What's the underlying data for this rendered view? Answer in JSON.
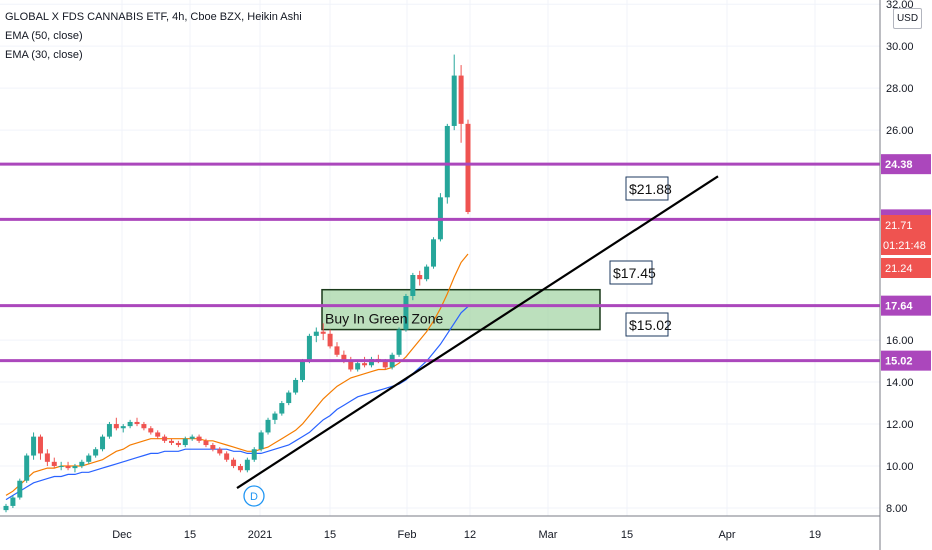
{
  "legend": {
    "title": "GLOBAL X FDS CANNABIS ETF, 4h, Cboe BZX, Heikin Ashi",
    "ema50": "EMA (50, close)",
    "ema30": "EMA (30, close)"
  },
  "currency": "USD",
  "colors": {
    "up": "#26a69a",
    "down": "#ef5350",
    "ema50": "#2962ff",
    "ema30": "#f57c00",
    "level": "#ab47bc",
    "zone_fill": "#a5d6a7",
    "trendline": "#000000",
    "grid": "#f0f3fa"
  },
  "chart_data": {
    "type": "candlestick",
    "x_ticks": [
      "Dec",
      "15",
      "2021",
      "15",
      "Feb",
      "12",
      "Mar",
      "15",
      "Apr",
      "19"
    ],
    "y_ticks": [
      "8.00",
      "10.00",
      "12.00",
      "14.00",
      "16.00",
      "26.00",
      "28.00",
      "30.00",
      "32.00"
    ],
    "ylim": [
      6,
      32.2
    ],
    "grid": true,
    "horizontal_levels": [
      {
        "value": 24.38,
        "label": "24.38"
      },
      {
        "value": 21.75,
        "label": "21.75"
      },
      {
        "value": 17.64,
        "label": "17.64"
      },
      {
        "value": 15.02,
        "label": "15.02"
      }
    ],
    "price_tags": [
      {
        "value": 21.71,
        "label": "21.71"
      },
      {
        "value": 21.24,
        "label": "21.24"
      }
    ],
    "countdown": "01:21:48",
    "annotations": [
      {
        "text": "$21.88"
      },
      {
        "text": "$17.45"
      },
      {
        "text": "$15.02"
      },
      {
        "text": "Buy In Green Zone"
      }
    ],
    "zone": {
      "y_top": 18.4,
      "y_bottom": 16.5
    },
    "trendline": {
      "start": {
        "date": "2020-12-18",
        "price": 8.95
      },
      "end": {
        "date": "2021-03-30",
        "price": 23.8
      }
    },
    "event_marker": "D",
    "candles": [
      [
        7.9,
        8.2,
        7.8,
        8.1
      ],
      [
        8.1,
        8.6,
        8.0,
        8.5
      ],
      [
        8.5,
        9.4,
        8.4,
        9.3
      ],
      [
        9.3,
        10.6,
        9.2,
        10.5
      ],
      [
        10.5,
        11.6,
        10.3,
        11.4
      ],
      [
        11.4,
        11.5,
        10.3,
        10.6
      ],
      [
        10.6,
        10.8,
        10.0,
        10.2
      ],
      [
        10.2,
        10.4,
        9.9,
        10.0
      ],
      [
        10.0,
        10.2,
        9.8,
        10.0
      ],
      [
        10.0,
        10.2,
        9.8,
        9.9
      ],
      [
        9.9,
        10.1,
        9.7,
        10.0
      ],
      [
        10.0,
        10.3,
        9.9,
        10.2
      ],
      [
        10.2,
        10.6,
        10.1,
        10.5
      ],
      [
        10.5,
        10.9,
        10.4,
        10.8
      ],
      [
        10.8,
        11.5,
        10.7,
        11.4
      ],
      [
        11.4,
        12.1,
        11.3,
        12.0
      ],
      [
        12.0,
        12.3,
        11.7,
        11.8
      ],
      [
        11.8,
        12.0,
        11.6,
        11.9
      ],
      [
        11.9,
        12.2,
        11.8,
        12.1
      ],
      [
        12.1,
        12.3,
        11.9,
        12.0
      ],
      [
        12.0,
        12.1,
        11.7,
        11.8
      ],
      [
        11.8,
        11.9,
        11.5,
        11.6
      ],
      [
        11.6,
        11.7,
        11.3,
        11.4
      ],
      [
        11.4,
        11.5,
        11.1,
        11.2
      ],
      [
        11.2,
        11.3,
        11.0,
        11.1
      ],
      [
        11.1,
        11.2,
        10.9,
        11.0
      ],
      [
        11.0,
        11.4,
        10.9,
        11.3
      ],
      [
        11.3,
        11.5,
        11.2,
        11.4
      ],
      [
        11.4,
        11.5,
        11.1,
        11.2
      ],
      [
        11.2,
        11.3,
        10.9,
        11.0
      ],
      [
        11.0,
        11.1,
        10.7,
        10.8
      ],
      [
        10.8,
        10.9,
        10.5,
        10.6
      ],
      [
        10.6,
        10.7,
        10.2,
        10.3
      ],
      [
        10.3,
        10.4,
        9.9,
        10.0
      ],
      [
        10.0,
        10.1,
        9.7,
        9.8
      ],
      [
        9.8,
        10.4,
        9.7,
        10.3
      ],
      [
        10.3,
        10.9,
        10.2,
        10.8
      ],
      [
        10.8,
        11.7,
        10.7,
        11.6
      ],
      [
        11.6,
        12.3,
        11.5,
        12.2
      ],
      [
        12.2,
        12.6,
        12.0,
        12.5
      ],
      [
        12.5,
        13.1,
        12.4,
        13.0
      ],
      [
        13.0,
        13.6,
        12.9,
        13.5
      ],
      [
        13.5,
        14.2,
        13.4,
        14.1
      ],
      [
        14.1,
        15.1,
        14.0,
        15.0
      ],
      [
        15.0,
        16.3,
        14.9,
        16.2
      ],
      [
        16.2,
        16.6,
        15.9,
        16.4
      ],
      [
        16.4,
        16.8,
        16.0,
        16.3
      ],
      [
        16.3,
        16.5,
        15.6,
        15.7
      ],
      [
        15.7,
        15.9,
        15.2,
        15.3
      ],
      [
        15.3,
        15.5,
        14.9,
        15.0
      ],
      [
        15.0,
        15.2,
        14.5,
        14.6
      ],
      [
        14.6,
        15.0,
        14.5,
        14.9
      ],
      [
        14.9,
        15.2,
        14.7,
        14.8
      ],
      [
        14.8,
        15.2,
        14.7,
        15.1
      ],
      [
        15.1,
        15.3,
        14.9,
        15.0
      ],
      [
        15.0,
        15.1,
        14.6,
        14.7
      ],
      [
        14.7,
        15.4,
        14.6,
        15.3
      ],
      [
        15.3,
        16.6,
        15.2,
        16.5
      ],
      [
        16.5,
        18.2,
        16.4,
        18.1
      ],
      [
        18.1,
        19.2,
        17.9,
        19.1
      ],
      [
        19.1,
        19.3,
        18.6,
        18.9
      ],
      [
        18.9,
        19.6,
        18.8,
        19.5
      ],
      [
        19.5,
        20.9,
        19.4,
        20.8
      ],
      [
        20.8,
        23.0,
        20.7,
        22.8
      ],
      [
        22.8,
        26.3,
        22.5,
        26.2
      ],
      [
        26.2,
        29.6,
        26.0,
        28.6
      ],
      [
        28.6,
        29.1,
        25.4,
        26.3
      ],
      [
        26.3,
        26.5,
        22.0,
        22.1
      ]
    ],
    "ema30": [
      8.6,
      8.8,
      9.1,
      9.4,
      9.7,
      9.8,
      9.9,
      9.9,
      10.0,
      10.0,
      10.0,
      10.0,
      10.1,
      10.2,
      10.3,
      10.5,
      10.7,
      10.8,
      11.0,
      11.1,
      11.2,
      11.3,
      11.3,
      11.3,
      11.3,
      11.3,
      11.3,
      11.3,
      11.3,
      11.2,
      11.2,
      11.1,
      11.0,
      10.9,
      10.8,
      10.7,
      10.7,
      10.8,
      10.9,
      11.1,
      11.3,
      11.5,
      11.7,
      12.0,
      12.4,
      12.8,
      13.2,
      13.5,
      13.8,
      14.0,
      14.2,
      14.3,
      14.4,
      14.5,
      14.6,
      14.6,
      14.7,
      14.9,
      15.2,
      15.6,
      16.0,
      16.4,
      16.9,
      17.5,
      18.2,
      19.0,
      19.7,
      20.1
    ],
    "ema50": [
      8.4,
      8.6,
      8.8,
      9.0,
      9.2,
      9.3,
      9.4,
      9.5,
      9.5,
      9.6,
      9.6,
      9.7,
      9.7,
      9.8,
      9.9,
      10.0,
      10.1,
      10.2,
      10.3,
      10.4,
      10.5,
      10.6,
      10.6,
      10.7,
      10.7,
      10.7,
      10.8,
      10.8,
      10.8,
      10.8,
      10.8,
      10.8,
      10.8,
      10.7,
      10.7,
      10.6,
      10.6,
      10.6,
      10.7,
      10.8,
      10.9,
      11.0,
      11.2,
      11.4,
      11.6,
      11.9,
      12.2,
      12.4,
      12.7,
      12.9,
      13.1,
      13.3,
      13.4,
      13.5,
      13.6,
      13.7,
      13.8,
      13.9,
      14.1,
      14.4,
      14.7,
      15.0,
      15.4,
      15.8,
      16.3,
      16.8,
      17.3,
      17.6
    ]
  }
}
